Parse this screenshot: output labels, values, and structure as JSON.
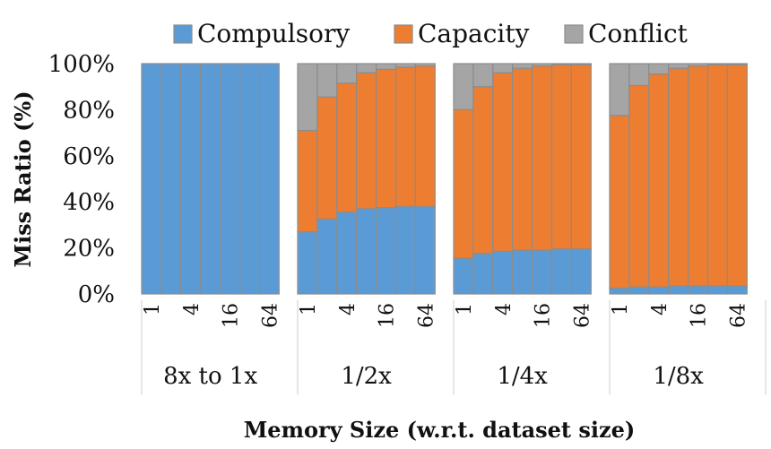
{
  "chart_data": {
    "type": "bar",
    "stacked": true,
    "percent_stacked": true,
    "ylabel": "Miss Ratio (%)",
    "xlabel": "Memory Size (w.r.t. dataset size)",
    "ylim": [
      0,
      100
    ],
    "y_ticks": [
      "0%",
      "20%",
      "40%",
      "60%",
      "80%",
      "100%"
    ],
    "legend_position": "top",
    "x_tick_labels": [
      "1",
      "4",
      "16",
      "64"
    ],
    "x_values": [
      1,
      2,
      4,
      8,
      16,
      32,
      64
    ],
    "groups": [
      {
        "label": "8x to 1x",
        "series": [
          {
            "name": "Compulsory",
            "values": [
              100,
              100,
              100,
              100,
              100,
              100,
              100
            ]
          },
          {
            "name": "Capacity",
            "values": [
              0,
              0,
              0,
              0,
              0,
              0,
              0
            ]
          },
          {
            "name": "Conflict",
            "values": [
              0,
              0,
              0,
              0,
              0,
              0,
              0
            ]
          }
        ]
      },
      {
        "label": "1/2x",
        "series": [
          {
            "name": "Compulsory",
            "values": [
              27,
              32.5,
              35.5,
              37,
              37.5,
              38,
              38
            ]
          },
          {
            "name": "Capacity",
            "values": [
              44,
              53,
              56,
              59,
              60,
              60.5,
              61
            ]
          },
          {
            "name": "Conflict",
            "values": [
              29,
              14.5,
              8.5,
              4,
              2.5,
              1.5,
              1
            ]
          }
        ]
      },
      {
        "label": "1/4x",
        "series": [
          {
            "name": "Compulsory",
            "values": [
              15.5,
              17.5,
              18.5,
              19,
              19,
              19.5,
              19.5
            ]
          },
          {
            "name": "Capacity",
            "values": [
              64.5,
              72.5,
              77.5,
              79,
              80,
              80,
              80
            ]
          },
          {
            "name": "Conflict",
            "values": [
              20,
              10,
              4,
              2,
              1,
              0.5,
              0.5
            ]
          }
        ]
      },
      {
        "label": "1/8x",
        "series": [
          {
            "name": "Compulsory",
            "values": [
              2.5,
              3,
              3,
              3.5,
              3.5,
              3.5,
              3.5
            ]
          },
          {
            "name": "Capacity",
            "values": [
              75,
              87.5,
              92.5,
              94.5,
              95.5,
              96,
              96
            ]
          },
          {
            "name": "Conflict",
            "values": [
              22.5,
              9.5,
              4.5,
              2,
              1,
              0.5,
              0.5
            ]
          }
        ]
      }
    ],
    "colors": {
      "Compulsory": "#5b9bd5",
      "Capacity": "#ed7d31",
      "Conflict": "#a5a5a5",
      "bar_border": "#8c8c8c"
    }
  }
}
